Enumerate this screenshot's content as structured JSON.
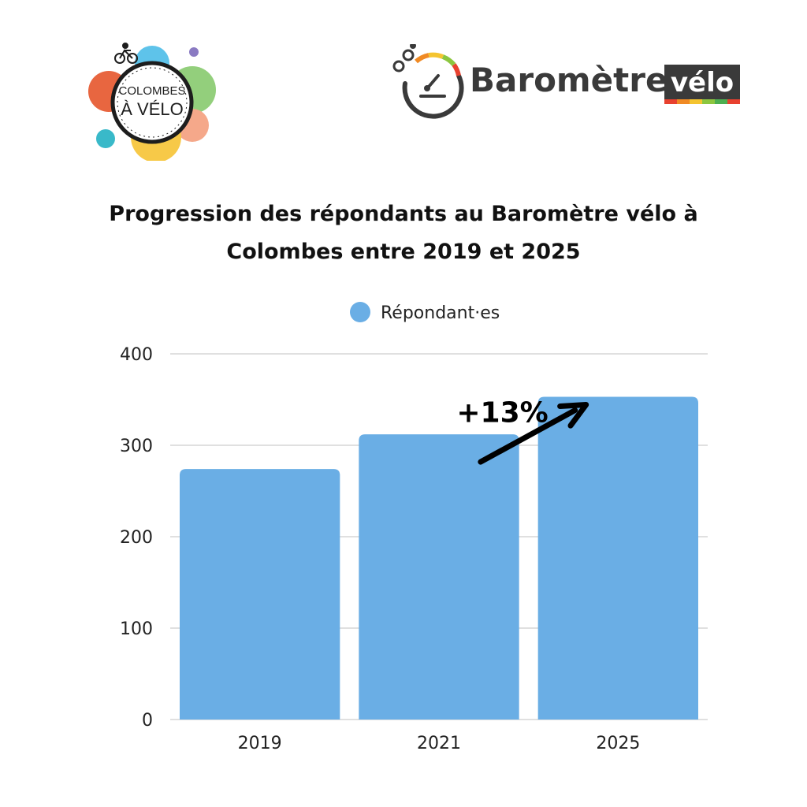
{
  "logos": {
    "colombes": {
      "line1": "COLOMBES",
      "line2": "À VÉLO"
    },
    "barometre": {
      "word1": "Baromètre",
      "word2": "vélo"
    }
  },
  "chart_data": {
    "type": "bar",
    "title": "Progression des répondants au Baromètre vélo à Colombes entre 2019 et 2025",
    "categories": [
      "2019",
      "2021",
      "2025"
    ],
    "series": [
      {
        "name": "Répondant·es",
        "values": [
          274,
          312,
          353
        ],
        "color": "#6aaee5"
      }
    ],
    "ylim": [
      0,
      400
    ],
    "yticks": [
      0,
      100,
      200,
      300,
      400
    ],
    "grid": true,
    "legend": "top-center",
    "annotation": {
      "text": "+13%",
      "from": "2021",
      "to": "2025"
    }
  }
}
